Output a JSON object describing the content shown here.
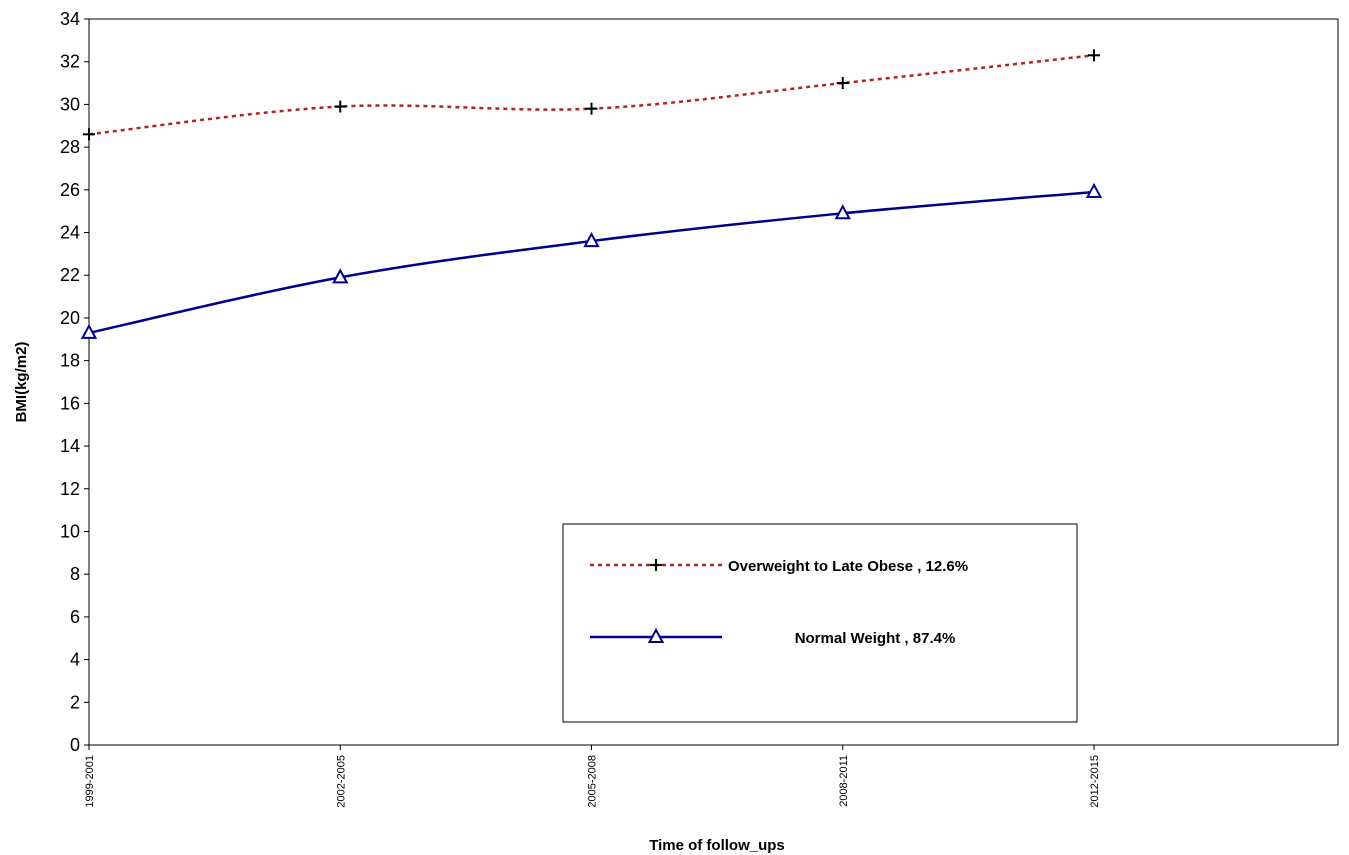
{
  "chart_data": {
    "type": "line",
    "categories": [
      "1999-2001",
      "2002-2005",
      "2005-2008",
      "2008-2011",
      "2012-2015"
    ],
    "series": [
      {
        "name": "Overweight to  Late Obese , 12.6%",
        "values": [
          28.6,
          29.9,
          29.8,
          31.0,
          32.3
        ],
        "color": "#b22222",
        "line_style": "dotted",
        "marker": "plus"
      },
      {
        "name": "Normal Weight , 87.4%",
        "values": [
          19.3,
          21.9,
          23.6,
          24.9,
          25.9
        ],
        "color": "#00008b",
        "line_style": "solid",
        "marker": "triangle"
      }
    ],
    "xlabel": "Time of follow_ups",
    "ylabel": "BMI(kg/m2)",
    "ylim": [
      0,
      34
    ],
    "yticks": [
      0,
      2,
      4,
      6,
      8,
      10,
      12,
      14,
      16,
      18,
      20,
      22,
      24,
      26,
      28,
      30,
      32,
      34
    ],
    "grid": false,
    "legend_position": "lower-center"
  }
}
